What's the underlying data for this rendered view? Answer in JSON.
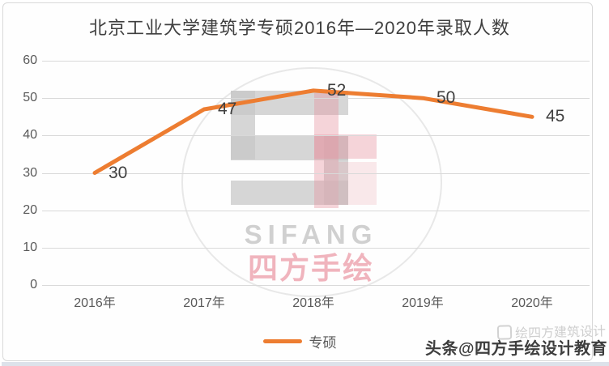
{
  "title": "北京工业大学建筑学专硕2016年—2020年录取人数",
  "chart_data": {
    "type": "line",
    "title": "北京工业大学建筑学专硕2016年—2020年录取人数",
    "categories": [
      "2016年",
      "2017年",
      "2018年",
      "2019年",
      "2020年"
    ],
    "series": [
      {
        "name": "专硕",
        "values": [
          30,
          47,
          52,
          50,
          45
        ],
        "color": "#ED7D31"
      }
    ],
    "yticks": [
      60,
      50,
      40,
      30,
      20,
      10,
      0
    ],
    "ylim": [
      0,
      60
    ],
    "grid": true,
    "legend_position": "bottom",
    "data_labels_shown": true
  },
  "legend": {
    "label": "专硕"
  },
  "watermark": {
    "text_en": "SIFANG",
    "text_cn": "四方手绘"
  },
  "badges": {
    "faint_text": "绘四方建筑设计",
    "toutiao_text": "头条@四方手绘设计教育"
  },
  "colors": {
    "line": "#ED7D31",
    "grid": "#D9D9D9",
    "axis_text": "#595959",
    "title_text": "#3F3F3F",
    "data_label": "#404040",
    "watermark_gray": "#C6C6C6",
    "watermark_pink": "#E8909D"
  }
}
